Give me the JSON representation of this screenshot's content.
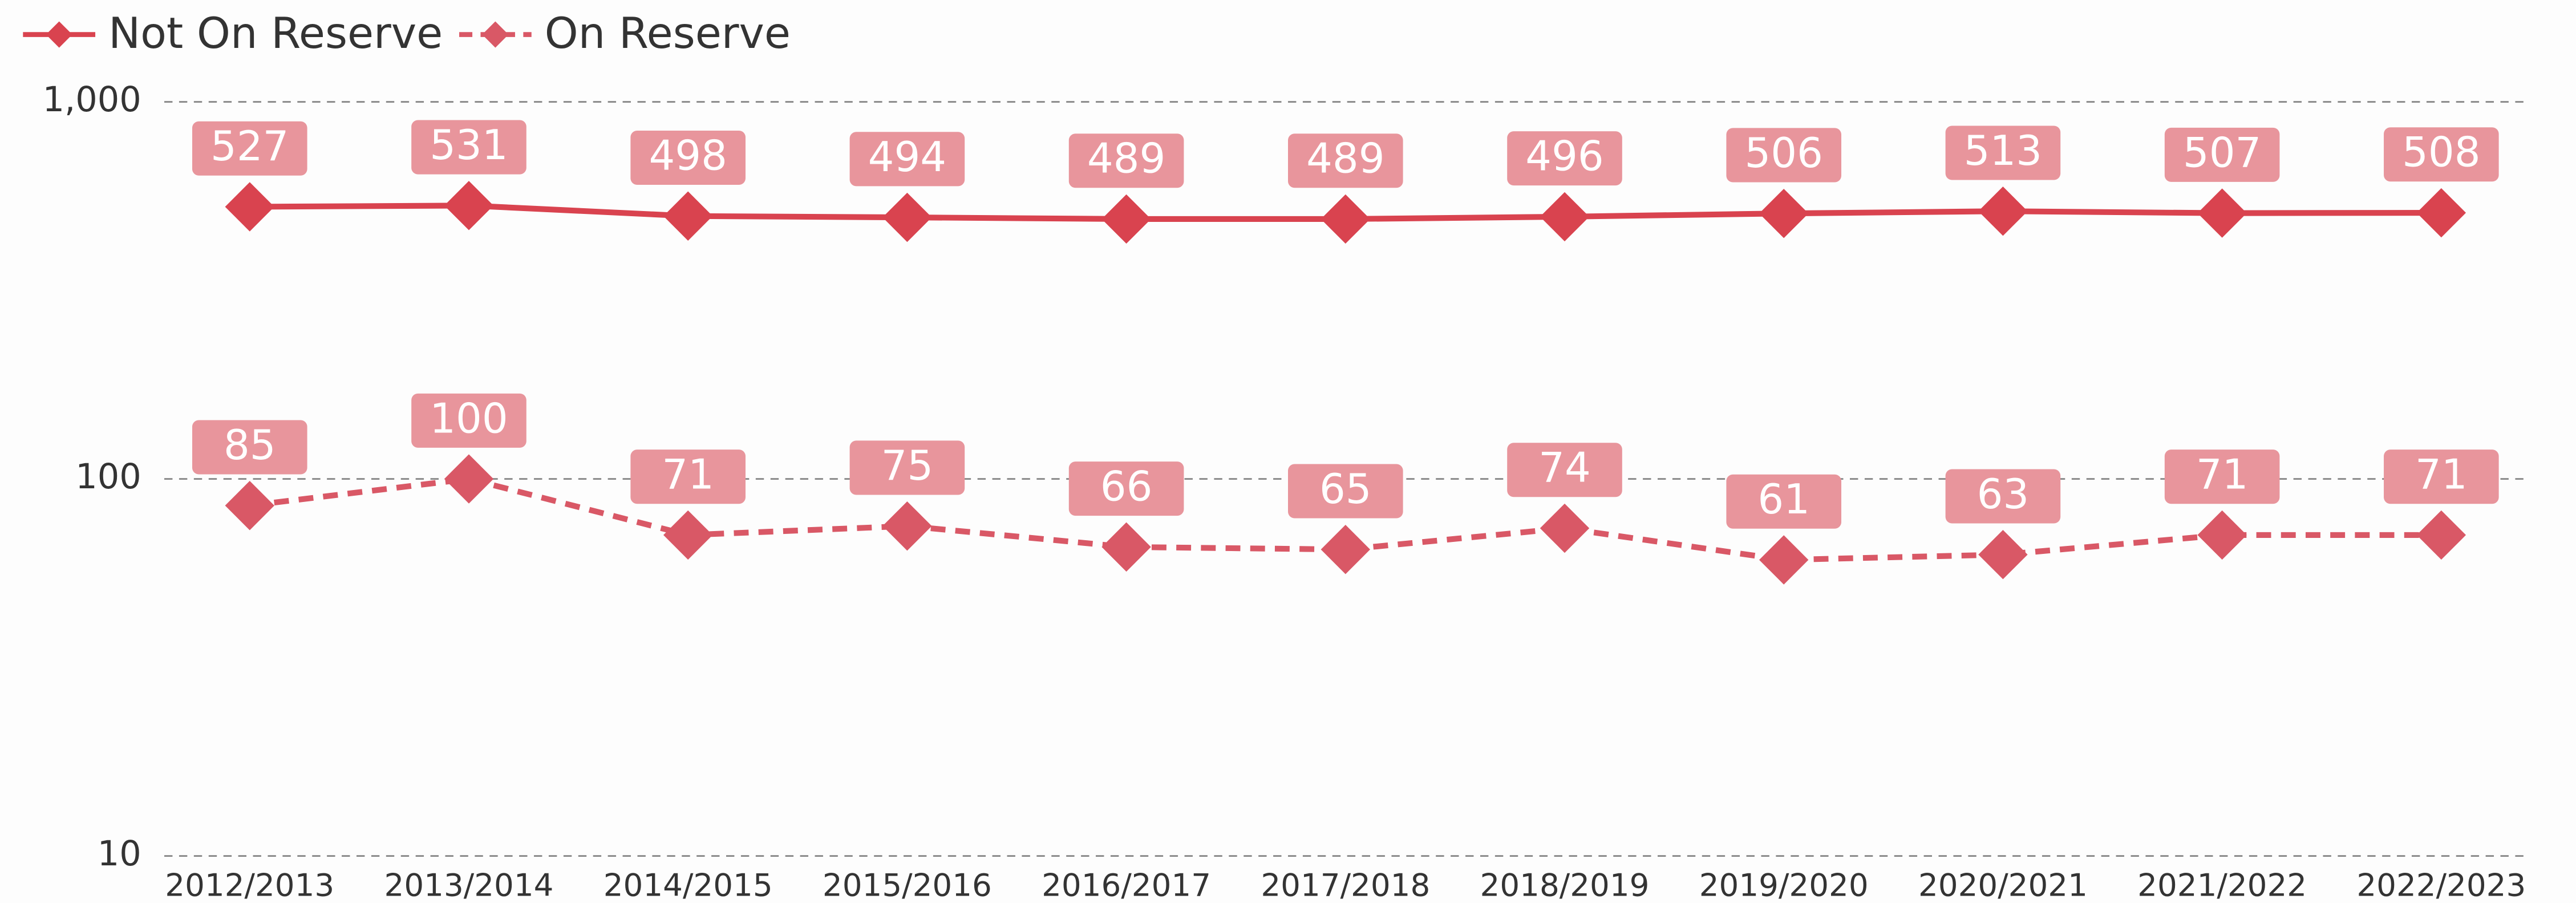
{
  "chart_data": {
    "type": "line",
    "categories": [
      "2012/2013",
      "2013/2014",
      "2014/2015",
      "2015/2016",
      "2016/2017",
      "2017/2018",
      "2018/2019",
      "2019/2020",
      "2020/2021",
      "2021/2022",
      "2022/2023"
    ],
    "series": [
      {
        "name": "Not On Reserve",
        "color": "#d9434f",
        "dash": false,
        "values": [
          527,
          531,
          498,
          494,
          489,
          489,
          496,
          506,
          513,
          507,
          508
        ]
      },
      {
        "name": "On Reserve",
        "color": "#d95866",
        "dash": true,
        "values": [
          85,
          100,
          71,
          75,
          66,
          65,
          74,
          61,
          63,
          71,
          71
        ]
      }
    ],
    "ylim": [
      10,
      1000
    ],
    "yscale": "log",
    "yticks": [
      {
        "value": 1000,
        "label": "1,000"
      },
      100,
      10
    ],
    "grid": true,
    "legend": "top-left"
  }
}
